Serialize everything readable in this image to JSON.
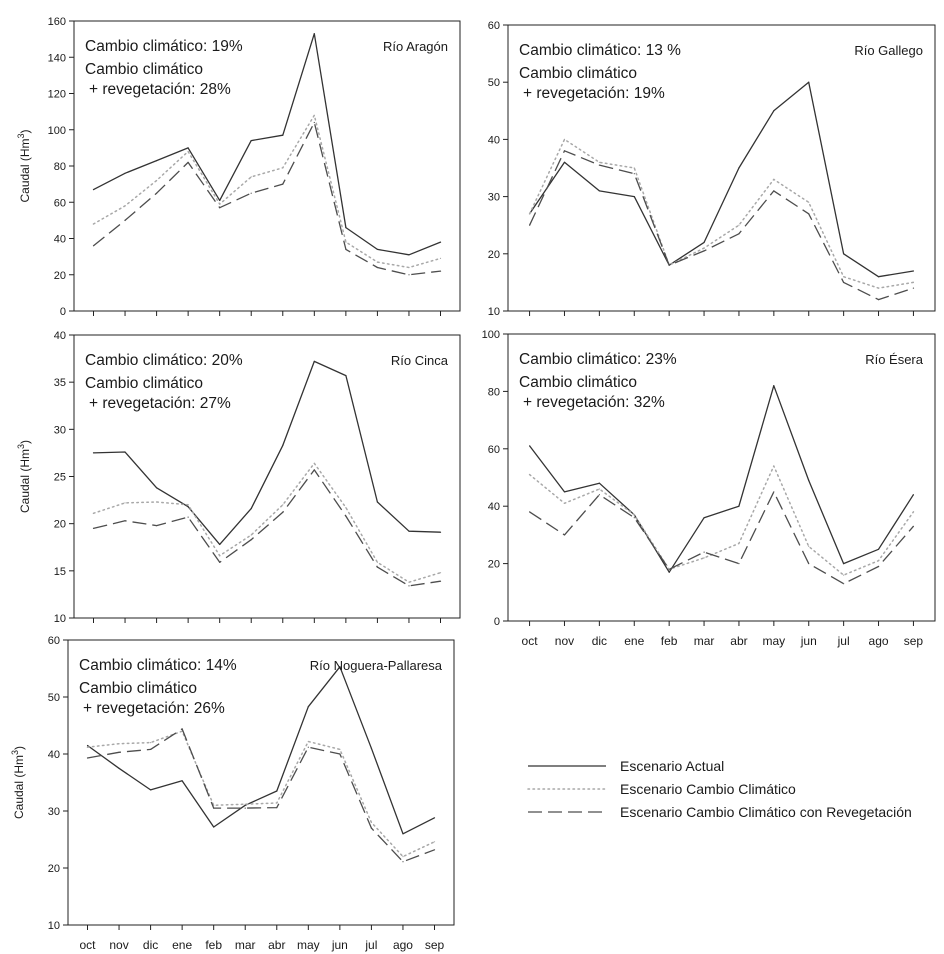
{
  "x_categories": [
    "oct",
    "nov",
    "dic",
    "ene",
    "feb",
    "mar",
    "abr",
    "may",
    "jun",
    "jul",
    "ago",
    "sep"
  ],
  "legend": {
    "entries": [
      {
        "label": "Escenario Actual",
        "style": "solid"
      },
      {
        "label": "Escenario Cambio Climático",
        "style": "dotted"
      },
      {
        "label": "Escenario Cambio Climático con Revegetación",
        "style": "dashed"
      }
    ]
  },
  "colors": {
    "solid": "#333333",
    "dotted": "#a8a8a8",
    "dashed": "#4d4d4d"
  },
  "chart_data": [
    {
      "type": "line",
      "title": "Río Aragón",
      "annotations": [
        "Cambio climático: 19%",
        "Cambio climático",
        "+ revegetación: 28%"
      ],
      "ylabel": "Caudal (Hm3)",
      "ylim": [
        0,
        160
      ],
      "yticks": [
        0,
        20,
        40,
        60,
        80,
        100,
        120,
        140,
        160
      ],
      "categories": [
        "oct",
        "nov",
        "dic",
        "ene",
        "feb",
        "mar",
        "abr",
        "may",
        "jun",
        "jul",
        "ago",
        "sep"
      ],
      "series": [
        {
          "name": "Escenario Actual",
          "style": "solid",
          "values": [
            67,
            76,
            83,
            90,
            61,
            94,
            97,
            153,
            46,
            34,
            31,
            38
          ]
        },
        {
          "name": "Escenario Cambio Climático",
          "style": "dotted",
          "values": [
            48,
            58,
            72,
            88,
            59,
            74,
            79,
            108,
            38,
            27,
            24,
            29
          ]
        },
        {
          "name": "Escenario Cambio Climático con Revegetación",
          "style": "dashed",
          "values": [
            36,
            50,
            65,
            82,
            57,
            65,
            70,
            104,
            34,
            24,
            20,
            22
          ]
        }
      ]
    },
    {
      "type": "line",
      "title": "Río Gallego",
      "annotations": [
        "Cambio climático: 13 %",
        "Cambio climático",
        "+ revegetación: 19%"
      ],
      "ylabel": "",
      "ylim": [
        10,
        60
      ],
      "yticks": [
        10,
        20,
        30,
        40,
        50,
        60
      ],
      "categories": [
        "oct",
        "nov",
        "dic",
        "ene",
        "feb",
        "mar",
        "abr",
        "may",
        "jun",
        "jul",
        "ago",
        "sep"
      ],
      "series": [
        {
          "name": "Escenario Actual",
          "style": "solid",
          "values": [
            27,
            36,
            31,
            30,
            18,
            22,
            35,
            45,
            50,
            20,
            16,
            17
          ]
        },
        {
          "name": "Escenario Cambio Climático",
          "style": "dotted",
          "values": [
            27,
            40,
            36,
            35,
            18,
            21,
            25,
            33,
            29,
            16,
            14,
            15
          ]
        },
        {
          "name": "Escenario Cambio Climático con Revegetación",
          "style": "dashed",
          "values": [
            25,
            38,
            35.5,
            34,
            18,
            20.5,
            23.5,
            31,
            27,
            15,
            12,
            14
          ]
        }
      ]
    },
    {
      "type": "line",
      "title": "Río Cinca",
      "annotations": [
        "Cambio climático: 20%",
        "Cambio climático",
        "+ revegetación: 27%"
      ],
      "ylabel": "Caudal (Hm3)",
      "ylim": [
        10,
        40
      ],
      "yticks": [
        10,
        15,
        20,
        25,
        30,
        35,
        40
      ],
      "categories": [
        "oct",
        "nov",
        "dic",
        "ene",
        "feb",
        "mar",
        "abr",
        "may",
        "jun",
        "jul",
        "ago",
        "sep"
      ],
      "series": [
        {
          "name": "Escenario Actual",
          "style": "solid",
          "values": [
            27.5,
            27.6,
            23.8,
            21.8,
            17.8,
            21.6,
            28.3,
            37.2,
            35.7,
            22.3,
            19.2,
            19.1
          ]
        },
        {
          "name": "Escenario Cambio Climático",
          "style": "dotted",
          "values": [
            21.1,
            22.2,
            22.3,
            22.0,
            16.6,
            18.8,
            22.0,
            26.4,
            21.7,
            15.9,
            13.8,
            14.8
          ]
        },
        {
          "name": "Escenario Cambio Climático con Revegetación",
          "style": "dashed",
          "values": [
            19.5,
            20.3,
            19.8,
            20.7,
            15.9,
            18.3,
            21.2,
            25.7,
            20.8,
            15.4,
            13.4,
            13.9
          ]
        }
      ]
    },
    {
      "type": "line",
      "title": "Río Ésera",
      "annotations": [
        "Cambio climático: 23%",
        "Cambio climático",
        "+ revegetación: 32%"
      ],
      "ylabel": "",
      "ylim": [
        0,
        100
      ],
      "yticks": [
        0,
        20,
        40,
        60,
        80,
        100
      ],
      "categories": [
        "oct",
        "nov",
        "dic",
        "ene",
        "feb",
        "mar",
        "abr",
        "may",
        "jun",
        "jul",
        "ago",
        "sep"
      ],
      "xticklabels": [
        "oct",
        "nov",
        "dic",
        "ene",
        "feb",
        "mar",
        "abr",
        "may",
        "jun",
        "jul",
        "ago",
        "sep"
      ],
      "series": [
        {
          "name": "Escenario Actual",
          "style": "solid",
          "values": [
            61,
            45,
            48,
            37,
            17,
            36,
            40,
            82,
            49,
            20,
            25,
            44
          ]
        },
        {
          "name": "Escenario Cambio Climático",
          "style": "dotted",
          "values": [
            51,
            41,
            46,
            37,
            18,
            22,
            27,
            54,
            26,
            16,
            21,
            38
          ]
        },
        {
          "name": "Escenario Cambio Climático con Revegetación",
          "style": "dashed",
          "values": [
            38,
            30,
            44,
            36,
            18,
            24,
            20,
            45,
            20,
            13,
            19,
            33
          ]
        }
      ]
    },
    {
      "type": "line",
      "title": "Río Noguera-Pallaresa",
      "annotations": [
        "Cambio climático: 14%",
        "Cambio climático",
        "+ revegetación: 26%"
      ],
      "ylabel": "Caudal (Hm3)",
      "ylim": [
        10,
        60
      ],
      "yticks": [
        10,
        20,
        30,
        40,
        50,
        60
      ],
      "categories": [
        "oct",
        "nov",
        "dic",
        "ene",
        "feb",
        "mar",
        "abr",
        "may",
        "jun",
        "jul",
        "ago",
        "sep"
      ],
      "xticklabels": [
        "oct",
        "nov",
        "dic",
        "ene",
        "feb",
        "mar",
        "abr",
        "may",
        "jun",
        "jul",
        "ago",
        "sep"
      ],
      "series": [
        {
          "name": "Escenario Actual",
          "style": "solid",
          "values": [
            41.5,
            37.5,
            33.7,
            35.3,
            27.2,
            31.0,
            33.5,
            48.3,
            55.3,
            41.0,
            26.0,
            28.8
          ]
        },
        {
          "name": "Escenario Cambio Climático",
          "style": "dotted",
          "values": [
            41.2,
            41.8,
            42.0,
            44.0,
            31.0,
            31.2,
            31.4,
            42.2,
            40.8,
            28.0,
            22.0,
            24.6
          ]
        },
        {
          "name": "Escenario Cambio Climático con Revegetación",
          "style": "dashed",
          "values": [
            39.3,
            40.3,
            40.8,
            44.4,
            30.5,
            30.5,
            30.6,
            41.2,
            40.0,
            27.0,
            21.1,
            23.2
          ]
        }
      ]
    }
  ]
}
